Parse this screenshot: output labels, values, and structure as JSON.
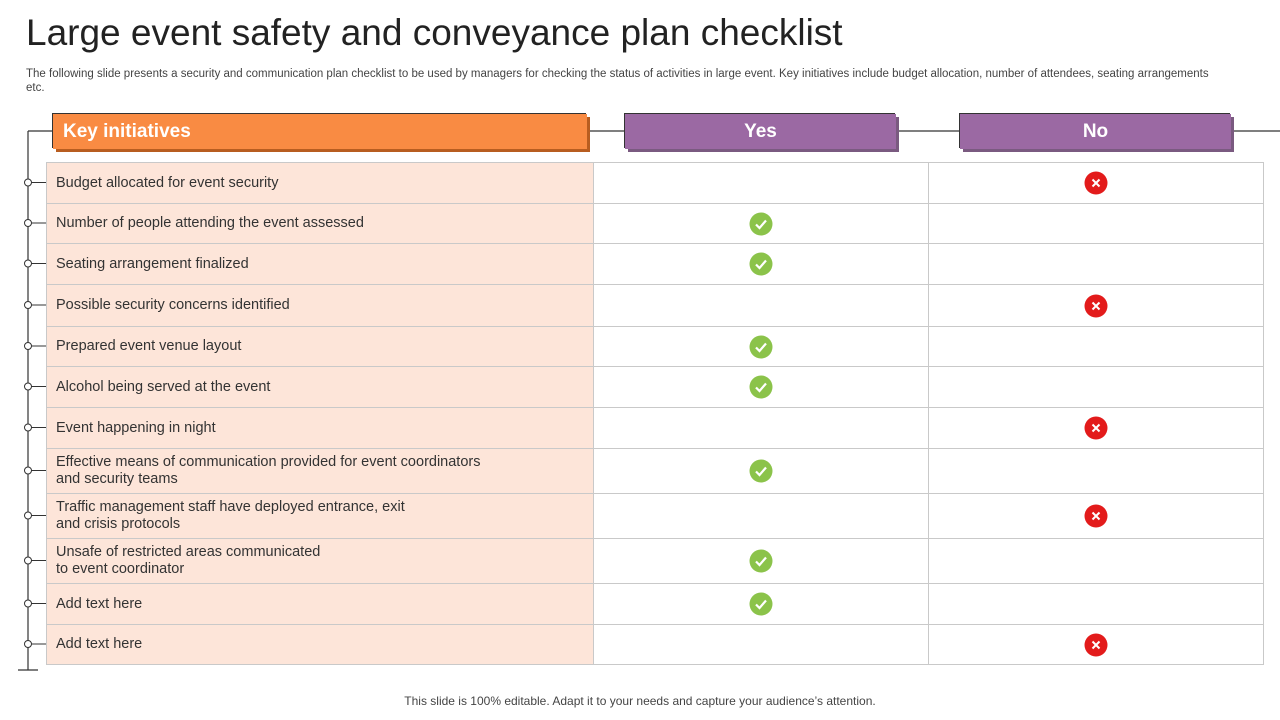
{
  "header": {
    "title": "Large event safety and conveyance plan checklist",
    "subtitle": "The following slide presents a security and communication plan checklist to be used by managers for checking the status of activities in large event. Key initiatives include budget allocation, number of attendees, seating arrangements etc."
  },
  "table": {
    "columns": [
      "Key initiatives",
      "Yes",
      "No"
    ],
    "rows": [
      {
        "label": "Budget allocated for event security",
        "status": "no"
      },
      {
        "label": "Number of people attending the event assessed",
        "status": "yes"
      },
      {
        "label": "Seating arrangement finalized",
        "status": "yes"
      },
      {
        "label": "Possible security concerns identified",
        "status": "no"
      },
      {
        "label": "Prepared event venue layout",
        "status": "yes"
      },
      {
        "label": "Alcohol being served at the event",
        "status": "yes"
      },
      {
        "label": "Event happening in night",
        "status": "no"
      },
      {
        "label": "Effective means of communication provided for event coordinators\nand security teams",
        "status": "yes"
      },
      {
        "label": "Traffic management staff have deployed entrance, exit\nand crisis protocols",
        "status": "no"
      },
      {
        "label": "Unsafe of restricted areas communicated\nto event coordinator",
        "status": "yes"
      },
      {
        "label": "Add text here",
        "status": "yes"
      },
      {
        "label": "Add text here",
        "status": "no"
      }
    ]
  },
  "footer": "This slide is 100% editable. Adapt it to your needs and capture your audience’s attention."
}
